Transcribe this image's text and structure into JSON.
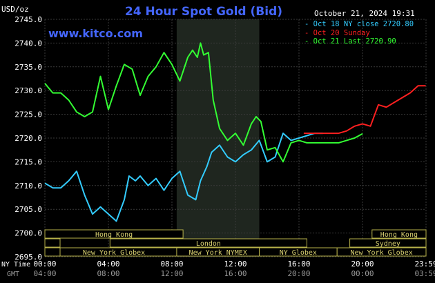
{
  "header": {
    "title": "24 Hour Spot Gold (Bid)",
    "timestamp": "October 21, 2024 19:31",
    "watermark": "www.kitco.com",
    "unit": "USD/oz"
  },
  "legend": [
    {
      "text": "Oct 18 NY close 2720.80",
      "color": "#33ccff"
    },
    {
      "text": "Oct 20 Sunday",
      "color": "#ff2020"
    },
    {
      "text": "Oct 21 Last 2720.90",
      "color": "#33ff33"
    }
  ],
  "axis_labels": {
    "ny_time": "NY Time",
    "gmt": "GMT"
  },
  "sessions": [
    {
      "label": "Hong Kong",
      "start": 0,
      "end": 8.7
    },
    {
      "label": "London",
      "start": 4.1,
      "end": 16.5
    },
    {
      "label": "New York Globex",
      "start": 0,
      "end": 8.7
    },
    {
      "label": "New York NYMEX",
      "start": 8.3,
      "end": 13.5
    },
    {
      "label": "NY Globex",
      "start": 13.5,
      "end": 18.4
    },
    {
      "label": "Hong Kong",
      "start": 20.6,
      "end": 24
    },
    {
      "label": "Sydney",
      "start": 19.2,
      "end": 24
    },
    {
      "label": "New York Globex",
      "start": 18.4,
      "end": 24
    }
  ],
  "chart_data": {
    "type": "line",
    "x_unit": "hours (NY Time)",
    "xlim": [
      0,
      24
    ],
    "ylim": [
      2695,
      2745
    ],
    "y_ticks": [
      2695.0,
      2700.0,
      2705.0,
      2710.0,
      2715.0,
      2720.0,
      2725.0,
      2730.0,
      2735.0,
      2740.0,
      2745.0
    ],
    "x_ticks_ny": [
      "00:00",
      "04:00",
      "08:00",
      "12:00",
      "16:00",
      "20:00",
      "23:59"
    ],
    "x_ticks_gmt": [
      "04:00",
      "08:00",
      "12:00",
      "16:00",
      "20:00",
      "00:00",
      "03:59"
    ],
    "nymex_shade": [
      8.3,
      13.5
    ],
    "series": [
      {
        "name": "Oct 18 NY close 2720.80",
        "color": "#33ccff",
        "x": [
          0,
          0.5,
          1.0,
          1.5,
          2.0,
          2.5,
          3.0,
          3.5,
          4.0,
          4.5,
          5.0,
          5.3,
          5.7,
          6.0,
          6.5,
          7.0,
          7.5,
          8.0,
          8.5,
          9.0,
          9.5,
          9.8,
          10.2,
          10.5,
          11.0,
          11.5,
          12.0,
          12.5,
          13.0,
          13.5,
          14.0,
          14.5,
          15.0,
          15.5,
          16.0,
          16.5,
          17.0,
          17.5
        ],
        "y": [
          2710.5,
          2709.5,
          2709.5,
          2711.0,
          2713.0,
          2708.0,
          2704.0,
          2705.5,
          2704.0,
          2702.5,
          2707.0,
          2712.0,
          2711.0,
          2712.0,
          2710.0,
          2711.5,
          2709.0,
          2711.5,
          2713.0,
          2708.0,
          2707.0,
          2711.0,
          2714.0,
          2717.0,
          2718.5,
          2716.0,
          2715.0,
          2716.5,
          2717.5,
          2719.5,
          2715.0,
          2716.0,
          2721.0,
          2719.5,
          2720.0,
          2720.5,
          2721.0,
          2721.0
        ]
      },
      {
        "name": "Oct 20 Sunday",
        "color": "#ff2020",
        "x": [
          16.3,
          17.0,
          18.0,
          18.5,
          19.0,
          19.5,
          20.0,
          20.5,
          21.0,
          21.5,
          22.0,
          22.5,
          23.0,
          23.5,
          23.98
        ],
        "y": [
          2721.0,
          2721.0,
          2721.0,
          2721.0,
          2721.5,
          2722.5,
          2723.0,
          2722.5,
          2727.0,
          2726.5,
          2727.5,
          2728.5,
          2729.5,
          2731.0,
          2731.0
        ]
      },
      {
        "name": "Oct 21 Last 2720.90",
        "color": "#33ff33",
        "x": [
          0,
          0.5,
          1.0,
          1.5,
          2.0,
          2.5,
          3.0,
          3.5,
          4.0,
          4.5,
          5.0,
          5.5,
          6.0,
          6.5,
          7.0,
          7.5,
          8.0,
          8.5,
          9.0,
          9.3,
          9.6,
          9.8,
          10.0,
          10.3,
          10.6,
          11.0,
          11.5,
          12.0,
          12.5,
          13.0,
          13.3,
          13.6,
          14.0,
          14.5,
          15.0,
          15.5,
          16.0,
          16.5,
          17.0,
          17.5,
          18.0,
          18.5,
          19.0,
          19.5,
          20.0
        ],
        "y": [
          2731.5,
          2729.5,
          2729.5,
          2728.0,
          2725.5,
          2724.5,
          2725.5,
          2733.0,
          2726.0,
          2731.0,
          2735.5,
          2734.5,
          2729.0,
          2733.0,
          2735.0,
          2738.0,
          2735.5,
          2732.0,
          2737.0,
          2738.5,
          2737.0,
          2740.0,
          2737.5,
          2738.0,
          2728.0,
          2722.0,
          2719.5,
          2721.0,
          2718.5,
          2723.0,
          2724.5,
          2723.5,
          2717.5,
          2718.0,
          2715.0,
          2719.0,
          2719.5,
          2719.0,
          2719.0,
          2719.0,
          2719.0,
          2719.0,
          2719.5,
          2720.0,
          2720.9
        ]
      }
    ]
  }
}
